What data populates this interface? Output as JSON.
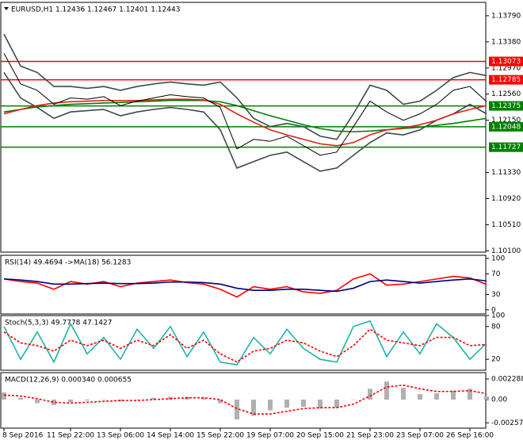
{
  "chart_data": [
    {
      "type": "line",
      "title": "EURUSD,H1  1.12436 1.12467 1.12401 1.12443",
      "ylim": [
        1.1008,
        1.14
      ],
      "yticks": [
        {
          "value": 1.1379,
          "label": "1.13790"
        },
        {
          "value": 1.1338,
          "label": "1.13380"
        },
        {
          "value": 1.1297,
          "label": "1.12970"
        },
        {
          "value": 1.1256,
          "label": "1.12560"
        },
        {
          "value": 1.1215,
          "label": "1.12150"
        },
        {
          "value": 1.1133,
          "label": "1.11330"
        },
        {
          "value": 1.1092,
          "label": "1.10920"
        },
        {
          "value": 1.1051,
          "label": "1.10510"
        },
        {
          "value": 1.101,
          "label": "1.10100"
        }
      ],
      "levels": [
        {
          "value": 1.13073,
          "color": "#ff0000"
        },
        {
          "value": 1.12785,
          "color": "#ff0000"
        },
        {
          "value": 1.12375,
          "color": "#008000"
        },
        {
          "value": 1.12048,
          "color": "#008000"
        },
        {
          "value": 1.11727,
          "color": "#008000"
        }
      ],
      "series": [
        {
          "color": "#3a4a4a",
          "values": [
            1.135,
            1.13,
            1.129,
            1.1268,
            1.1268,
            1.1265,
            1.1268,
            1.1262,
            1.1268,
            1.1272,
            1.1275,
            1.1272,
            1.127,
            1.1275,
            1.125,
            1.1218,
            1.1205,
            1.121,
            1.1205,
            1.119,
            1.1185,
            1.1225,
            1.127,
            1.1262,
            1.124,
            1.1245,
            1.1262,
            1.1282,
            1.129,
            1.1285
          ]
        },
        {
          "color": "#3a4a4a",
          "values": [
            1.129,
            1.125,
            1.1235,
            1.1218,
            1.1228,
            1.123,
            1.1232,
            1.1222,
            1.1228,
            1.1232,
            1.1235,
            1.1232,
            1.1228,
            1.12,
            1.114,
            1.115,
            1.116,
            1.1165,
            1.115,
            1.1135,
            1.114,
            1.116,
            1.118,
            1.1195,
            1.1192,
            1.12,
            1.1215,
            1.1225,
            1.124,
            1.1225
          ]
        },
        {
          "color": "#008000",
          "values": [
            1.1228,
            1.1232,
            1.1236,
            1.1238,
            1.124,
            1.1241,
            1.1242,
            1.1243,
            1.1244,
            1.1245,
            1.1246,
            1.1246,
            1.1246,
            1.1244,
            1.1238,
            1.123,
            1.1222,
            1.1215,
            1.1208,
            1.1202,
            1.1198,
            1.1197,
            1.1198,
            1.12,
            1.1202,
            1.1204,
            1.1207,
            1.121,
            1.1214,
            1.1218
          ]
        },
        {
          "color": "#e0201a",
          "values": [
            1.1225,
            1.1232,
            1.1238,
            1.1242,
            1.1244,
            1.1245,
            1.1246,
            1.1246,
            1.1246,
            1.1247,
            1.1248,
            1.1248,
            1.1247,
            1.124,
            1.1225,
            1.1212,
            1.12,
            1.1192,
            1.1185,
            1.1178,
            1.1175,
            1.118,
            1.1192,
            1.12,
            1.1203,
            1.1208,
            1.1215,
            1.1225,
            1.1232,
            1.1238
          ]
        },
        {
          "color": "#000000",
          "values": [
            1.132,
            1.1272,
            1.1262,
            1.124,
            1.125,
            1.1248,
            1.1252,
            1.1238,
            1.1245,
            1.125,
            1.1255,
            1.1252,
            1.125,
            1.1235,
            1.117,
            1.1185,
            1.1182,
            1.119,
            1.1175,
            1.116,
            1.1165,
            1.1205,
            1.1245,
            1.1228,
            1.1215,
            1.1225,
            1.124,
            1.1262,
            1.1268,
            1.12443
          ]
        }
      ]
    },
    {
      "type": "line",
      "title": "RSI(14) 49.4694 ->MA(18) 56.1283",
      "ylim": [
        -8,
        106
      ],
      "yticks": [
        100,
        70,
        30,
        0
      ],
      "series": [
        {
          "color": "#ff0000",
          "values": [
            60,
            55,
            52,
            40,
            55,
            50,
            55,
            45,
            52,
            55,
            58,
            53,
            50,
            40,
            25,
            45,
            40,
            45,
            35,
            32,
            38,
            60,
            70,
            48,
            50,
            55,
            60,
            65,
            62,
            49.4694
          ]
        },
        {
          "color": "#000080",
          "values": [
            60,
            58,
            55,
            50,
            50,
            51,
            52,
            51,
            51,
            52,
            54,
            54,
            53,
            50,
            42,
            38,
            38,
            40,
            40,
            38,
            36,
            42,
            55,
            58,
            55,
            52,
            55,
            58,
            60,
            56.1283
          ]
        }
      ]
    },
    {
      "type": "line",
      "title": "Stoch(5,3,3) 49.7778 47.1427",
      "ylim": [
        0,
        100
      ],
      "yticks": [
        100,
        80,
        20
      ],
      "series": [
        {
          "color": "#20b2aa",
          "values": [
            80,
            20,
            70,
            15,
            85,
            30,
            60,
            20,
            75,
            40,
            80,
            25,
            70,
            15,
            10,
            60,
            30,
            75,
            40,
            20,
            15,
            80,
            90,
            25,
            70,
            30,
            85,
            60,
            20,
            49.7778
          ]
        },
        {
          "color": "#ff0000",
          "dash": true,
          "values": [
            70,
            50,
            45,
            35,
            55,
            45,
            55,
            40,
            55,
            45,
            65,
            40,
            55,
            30,
            15,
            35,
            40,
            55,
            50,
            35,
            25,
            45,
            75,
            55,
            50,
            45,
            60,
            60,
            45,
            47.1427
          ]
        }
      ]
    },
    {
      "type": "bar",
      "title": "MACD(12,26,9) 0.000340 0.000655",
      "ylim": [
        -0.00317,
        0.00299
      ],
      "yticks": [
        0.002288,
        {
          "value": 0,
          "label": "0.00"
        },
        -0.002579
      ],
      "categories": [
        "8 Sep 2016",
        null,
        null,
        null,
        "11 Sep 22:00",
        null,
        null,
        "13 Sep 06:00",
        null,
        null,
        "14 Sep 14:00",
        null,
        null,
        "15 Sep 22:00",
        null,
        null,
        "19 Sep 07:00",
        null,
        null,
        "20 Sep 15:00",
        null,
        null,
        "21 Sep 23:00",
        null,
        null,
        "23 Sep 07:00",
        null,
        null,
        "26 Sep 16:00",
        null
      ],
      "series": [
        {
          "color": "#b0b0b0",
          "values": [
            0.0008,
            0.0002,
            -0.0004,
            -0.0006,
            -0.0003,
            -0.0001,
            0,
            -0.0002,
            0,
            0.0002,
            0.0003,
            0.0003,
            0.0002,
            -0.0004,
            -0.0022,
            -0.0018,
            -0.0012,
            -0.0009,
            -0.0008,
            -0.001,
            -0.0009,
            0,
            0.0012,
            0.002,
            0.0013,
            0.0006,
            0.0007,
            0.001,
            0.0012,
            0.00034
          ]
        },
        {
          "color": "#ff0000",
          "dash": true,
          "type": "line",
          "values": [
            0.0005,
            0.0004,
            0.0001,
            -0.0003,
            -0.0004,
            -0.0003,
            -0.0002,
            -0.0001,
            -0.0001,
            0,
            0.0001,
            0.0002,
            0.0002,
            0,
            -0.001,
            -0.0016,
            -0.0016,
            -0.0013,
            -0.001,
            -0.0009,
            -0.0009,
            -0.0005,
            0.0004,
            0.0014,
            0.0016,
            0.0012,
            0.0009,
            0.0009,
            0.001,
            0.000655
          ]
        }
      ]
    }
  ]
}
